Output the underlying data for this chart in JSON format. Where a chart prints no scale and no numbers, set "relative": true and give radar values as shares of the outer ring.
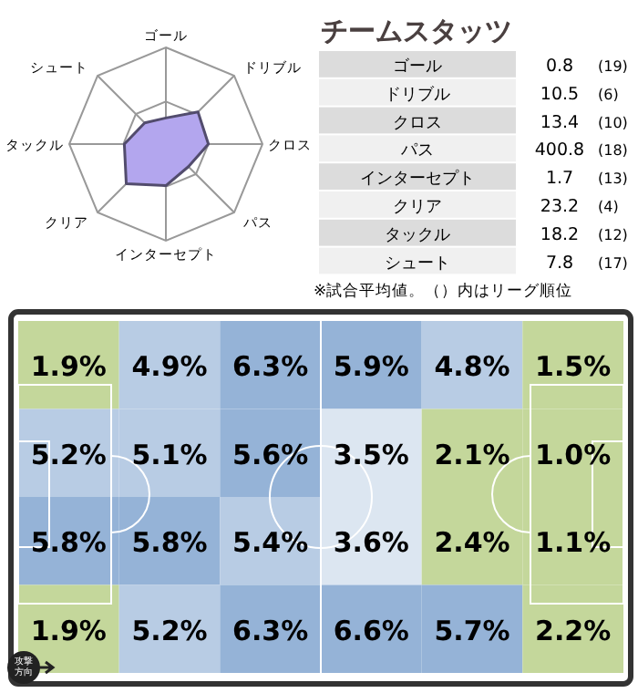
{
  "chart_data": [
    {
      "type": "radar",
      "relative": true,
      "categories": [
        "ゴール",
        "ドリブル",
        "クロス",
        "パス",
        "インターセプト",
        "クリア",
        "タックル",
        "シュート"
      ],
      "series": [
        {
          "color": "#b3a6ee",
          "values": [
            0.27,
            0.47,
            0.44,
            0.33,
            0.43,
            0.58,
            0.43,
            0.31
          ]
        }
      ]
    },
    {
      "type": "other",
      "title": "チームスタッツ",
      "categories": [
        "ゴール",
        "ドリブル",
        "クロス",
        "パス",
        "インターセプト",
        "クリア",
        "タックル",
        "シュート"
      ],
      "values": [
        0.8,
        10.5,
        13.4,
        400.8,
        1.7,
        23.2,
        18.2,
        7.8
      ],
      "data_labels": true,
      "annotations": [
        "(19)",
        "(6)",
        "(10)",
        "(18)",
        "(13)",
        "(4)",
        "(12)",
        "(17)",
        "※試合平均値。（）内はリーグ順位"
      ]
    },
    {
      "type": "heatmap",
      "categories": [
        null,
        null,
        null,
        null,
        null,
        null
      ],
      "y_categories": [
        null,
        null,
        null,
        null
      ],
      "cells": [
        [
          1.9,
          4.9,
          6.3,
          5.9,
          4.8,
          1.5
        ],
        [
          5.2,
          5.1,
          5.6,
          3.5,
          2.1,
          1.0
        ],
        [
          5.8,
          5.8,
          5.4,
          3.6,
          2.4,
          1.1
        ],
        [
          1.9,
          5.2,
          6.3,
          6.6,
          5.7,
          2.2
        ]
      ],
      "cell_labels": [
        [
          "1.9%",
          "4.9%",
          "6.3%",
          "5.9%",
          "4.8%",
          "1.5%"
        ],
        [
          "5.2%",
          "5.1%",
          "5.6%",
          "3.5%",
          "2.1%",
          "1.0%"
        ],
        [
          "5.8%",
          "5.8%",
          "5.4%",
          "3.6%",
          "2.4%",
          "1.1%"
        ],
        [
          "1.9%",
          "5.2%",
          "6.3%",
          "6.6%",
          "5.7%",
          "2.2%"
        ]
      ],
      "annotations": [
        "攻撃方向"
      ]
    }
  ]
}
